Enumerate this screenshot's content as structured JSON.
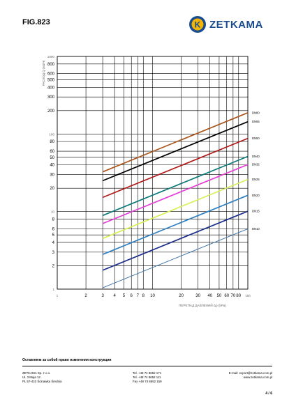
{
  "header": {
    "fig_label": "FIG.823",
    "brand": "ZETKAMA",
    "logo_letter": "K",
    "brand_color": "#1a4d8f",
    "accent_color": "#f5b400"
  },
  "chart_data": {
    "type": "line",
    "xscale": "log",
    "yscale": "log",
    "xlim": [
      1,
      100
    ],
    "ylim": [
      1,
      1000
    ],
    "xlabel": "ПЕРЕПАД ДАВЛЕНИЙ Δp (kPa)",
    "ylabel": "РАСХОД Q (м3/ч)",
    "grid": true,
    "x_ticks": [
      {
        "v": 1,
        "label": "1"
      },
      {
        "v": 2,
        "label": "2"
      },
      {
        "v": 3,
        "label": "3"
      },
      {
        "v": 4,
        "label": "4"
      },
      {
        "v": 5,
        "label": "5"
      },
      {
        "v": 6,
        "label": "6"
      },
      {
        "v": 7,
        "label": "7"
      },
      {
        "v": 8,
        "label": "8"
      },
      {
        "v": 10,
        "label": "10"
      },
      {
        "v": 20,
        "label": "20"
      },
      {
        "v": 30,
        "label": "30"
      },
      {
        "v": 40,
        "label": "40"
      },
      {
        "v": 50,
        "label": "50"
      },
      {
        "v": 60,
        "label": "60"
      },
      {
        "v": 70,
        "label": "70"
      },
      {
        "v": 80,
        "label": "80"
      },
      {
        "v": 100,
        "label": "100"
      }
    ],
    "y_ticks": [
      {
        "v": 1,
        "label": "1"
      },
      {
        "v": 2,
        "label": "2"
      },
      {
        "v": 3,
        "label": "3"
      },
      {
        "v": 4,
        "label": "4"
      },
      {
        "v": 5,
        "label": "5"
      },
      {
        "v": 6,
        "label": "6"
      },
      {
        "v": 8,
        "label": "8"
      },
      {
        "v": 10,
        "label": "10"
      },
      {
        "v": 20,
        "label": "20"
      },
      {
        "v": 30,
        "label": "30"
      },
      {
        "v": 40,
        "label": "40"
      },
      {
        "v": 50,
        "label": "50"
      },
      {
        "v": 60,
        "label": "60"
      },
      {
        "v": 80,
        "label": "80"
      },
      {
        "v": 100,
        "label": "100"
      },
      {
        "v": 200,
        "label": "200"
      },
      {
        "v": 300,
        "label": "300"
      },
      {
        "v": 400,
        "label": "400"
      },
      {
        "v": 500,
        "label": "500"
      },
      {
        "v": 600,
        "label": "600"
      },
      {
        "v": 800,
        "label": "800"
      },
      {
        "v": 1000,
        "label": "1000"
      }
    ],
    "series": [
      {
        "name": "DN10",
        "color": "#3a6ea5",
        "x": [
          3,
          100
        ],
        "y": [
          1.04,
          6.0
        ]
      },
      {
        "name": "DN15",
        "color": "#1c2e8c",
        "x": [
          3,
          100
        ],
        "y": [
          1.75,
          10.1
        ]
      },
      {
        "name": "DN20",
        "color": "#2f7fc1",
        "x": [
          3,
          100
        ],
        "y": [
          2.8,
          16.2
        ]
      },
      {
        "name": "DN25",
        "color": "#d9ef5a",
        "x": [
          3,
          100
        ],
        "y": [
          4.5,
          26.0
        ]
      },
      {
        "name": "DN32",
        "color": "#e23fd6",
        "x": [
          3,
          100
        ],
        "y": [
          7.0,
          40.4
        ]
      },
      {
        "name": "DN40",
        "color": "#0e7a7a",
        "x": [
          3,
          100
        ],
        "y": [
          8.9,
          51.4
        ]
      },
      {
        "name": "DN50",
        "color": "#b01818",
        "x": [
          3,
          100
        ],
        "y": [
          15.2,
          87.8
        ]
      },
      {
        "name": "DN65",
        "color": "#000000",
        "x": [
          3,
          100
        ],
        "y": [
          25.0,
          144
        ]
      },
      {
        "name": "DN80",
        "color": "#a8561e",
        "x": [
          3,
          100
        ],
        "y": [
          32.5,
          188
        ]
      }
    ]
  },
  "footer": {
    "note": "Оставляем за собой право изменения конструкции",
    "company_lines": "ZETKAMA Sp. z o.o.\nUl. 3 Maja 12\nPL 57-410 Ścinawka Średnia",
    "phone_lines": "Tel. +48 74 8652 171\nTel. +48 74 8652 111\nFax +48 74 8652 159",
    "contact_lines": "E-mail: export@zetkama.com.pl\nwww.zetkama.com.pl",
    "page": "4 / 6"
  }
}
